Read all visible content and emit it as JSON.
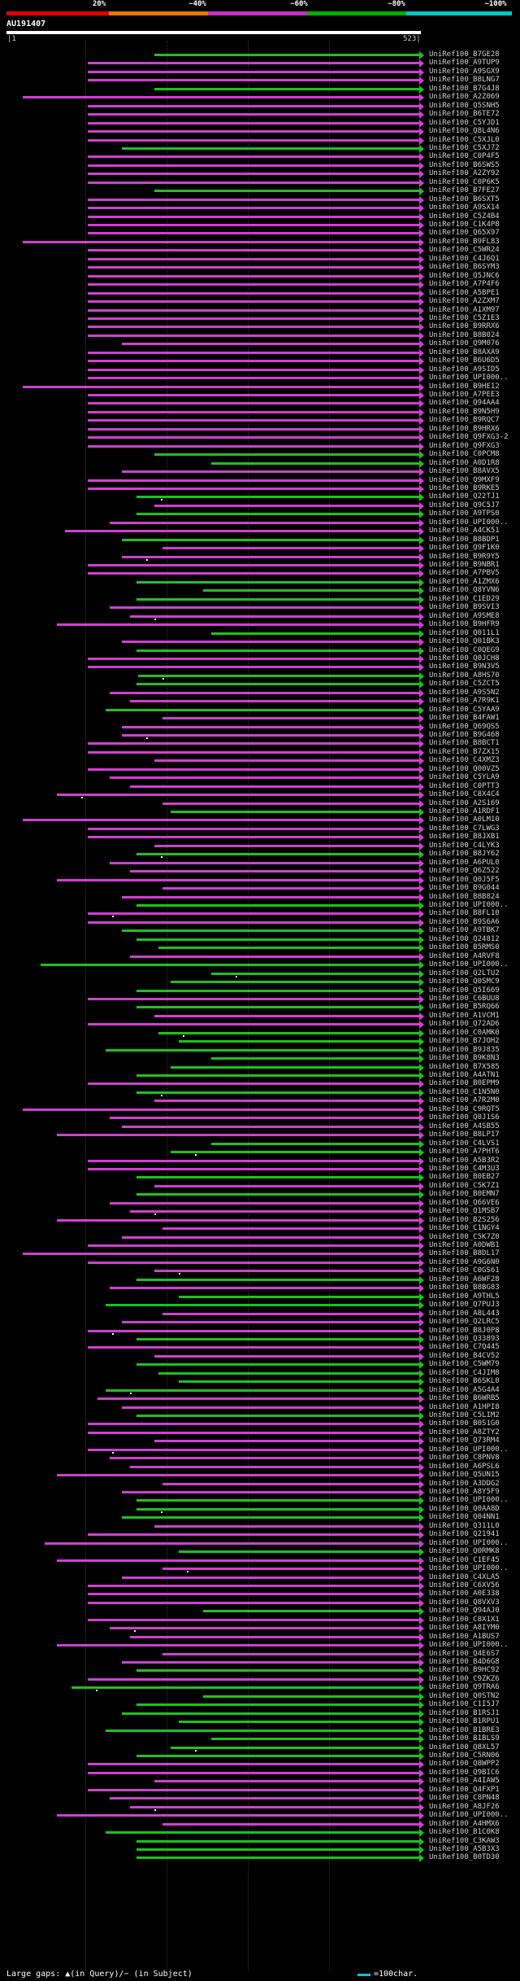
{
  "query": {
    "name": "AU191407",
    "start": "1",
    "end": "523"
  },
  "scale": {
    "labels": [
      "20%",
      "~40%",
      "~60%",
      "~80%",
      "~100%"
    ],
    "colors": [
      "#e00000",
      "#e87800",
      "#c030c0",
      "#00b000",
      "#00c8c8"
    ]
  },
  "colors": {
    "magenta": "#d040d0",
    "green": "#20c020",
    "background": "#000000"
  },
  "legend": {
    "gaps": "Large gaps: ▲(in Query)/− (in Subject)",
    "unit": "=100char."
  },
  "hits": [
    {
      "name": "UniRef100_B7GE28",
      "c": "g"
    },
    {
      "name": "UniRef100_A9TUP9",
      "c": "m"
    },
    {
      "name": "UniRef100_A9SGX9",
      "c": "m"
    },
    {
      "name": "UniRef100_B8LNG7",
      "c": "m"
    },
    {
      "name": "UniRef100_B7G4J8",
      "c": "g"
    },
    {
      "name": "UniRef100_A2Z069",
      "c": "m"
    },
    {
      "name": "UniRef100_Q5SNH5",
      "c": "m"
    },
    {
      "name": "UniRef100_B6TE72",
      "c": "m"
    },
    {
      "name": "UniRef100_C5YJD1",
      "c": "m"
    },
    {
      "name": "UniRef100_Q8L4N6",
      "c": "m"
    },
    {
      "name": "UniRef100_C5XJL0",
      "c": "m"
    },
    {
      "name": "UniRef100_C5XJ72",
      "c": "g"
    },
    {
      "name": "UniRef100_C0P4F5",
      "c": "m"
    },
    {
      "name": "UniRef100_B6SWS5",
      "c": "m"
    },
    {
      "name": "UniRef100_A2ZY92",
      "c": "m"
    },
    {
      "name": "UniRef100_C0P6K5",
      "c": "m"
    },
    {
      "name": "UniRef100_B7FE27",
      "c": "g"
    },
    {
      "name": "UniRef100_B6SXT5",
      "c": "m"
    },
    {
      "name": "UniRef100_A9SX14",
      "c": "m"
    },
    {
      "name": "UniRef100_C5Z4B4",
      "c": "m"
    },
    {
      "name": "UniRef100_C1K4P8",
      "c": "m"
    },
    {
      "name": "UniRef100_Q65X97",
      "c": "m"
    },
    {
      "name": "UniRef100_B9FL83",
      "c": "m"
    },
    {
      "name": "UniRef100_C5WR24",
      "c": "m"
    },
    {
      "name": "UniRef100_C4J6Q1",
      "c": "m"
    },
    {
      "name": "UniRef100_B6SYM3",
      "c": "m"
    },
    {
      "name": "UniRef100_Q5JNC6",
      "c": "m"
    },
    {
      "name": "UniRef100_A7P4F6",
      "c": "m"
    },
    {
      "name": "UniRef100_A5BPE1",
      "c": "m"
    },
    {
      "name": "UniRef100_A2ZXM7",
      "c": "m"
    },
    {
      "name": "UniRef100_A1XM97",
      "c": "m"
    },
    {
      "name": "UniRef100_C5Z1E3",
      "c": "m"
    },
    {
      "name": "UniRef100_B9RRX6",
      "c": "m"
    },
    {
      "name": "UniRef100_B8B024",
      "c": "m"
    },
    {
      "name": "UniRef100_Q9M076",
      "c": "m"
    },
    {
      "name": "UniRef100_B8AXA9",
      "c": "m"
    },
    {
      "name": "UniRef100_B6U6D5",
      "c": "m"
    },
    {
      "name": "UniRef100_A9SID5",
      "c": "m"
    },
    {
      "name": "UniRef100_UPI000..",
      "c": "m"
    },
    {
      "name": "UniRef100_B9HE12",
      "c": "m"
    },
    {
      "name": "UniRef100_A7PEE3",
      "c": "m"
    },
    {
      "name": "UniRef100_Q94AA4",
      "c": "m"
    },
    {
      "name": "UniRef100_B9N5H9",
      "c": "m"
    },
    {
      "name": "UniRef100_B9RQC7",
      "c": "m"
    },
    {
      "name": "UniRef100_B9HRX6",
      "c": "m"
    },
    {
      "name": "UniRef100_Q9FXG3-2",
      "c": "m"
    },
    {
      "name": "UniRef100_Q9FXG3",
      "c": "m"
    },
    {
      "name": "UniRef100_C0PCM8",
      "c": "g"
    },
    {
      "name": "UniRef100_A0D1R8",
      "c": "g"
    },
    {
      "name": "UniRef100_B8AVX5",
      "c": "m"
    },
    {
      "name": "UniRef100_Q9MXF9",
      "c": "m"
    },
    {
      "name": "UniRef100_B9RKE5",
      "c": "m"
    },
    {
      "name": "UniRef100_Q22TJ1",
      "c": "g"
    },
    {
      "name": "UniRef100_Q9C5J7",
      "c": "m"
    },
    {
      "name": "UniRef100_A9TPS0",
      "c": "g"
    },
    {
      "name": "UniRef100_UPI000..",
      "c": "m"
    },
    {
      "name": "UniRef100_A4CK51",
      "c": "m"
    },
    {
      "name": "UniRef100_B8BDP1",
      "c": "g"
    },
    {
      "name": "UniRef100_Q9F1K0",
      "c": "m"
    },
    {
      "name": "UniRef100_B9R9Y5",
      "c": "m"
    },
    {
      "name": "UniRef100_B9NBR1",
      "c": "m"
    },
    {
      "name": "UniRef100_A7PBV5",
      "c": "m"
    },
    {
      "name": "UniRef100_A1ZMX6",
      "c": "g"
    },
    {
      "name": "UniRef100_Q8YVN6",
      "c": "g"
    },
    {
      "name": "UniRef100_C1ED29",
      "c": "g"
    },
    {
      "name": "UniRef100_B9SVI3",
      "c": "m"
    },
    {
      "name": "UniRef100_A9SME8",
      "c": "m"
    },
    {
      "name": "UniRef100_B9HFR9",
      "c": "m"
    },
    {
      "name": "UniRef100_Q011L1",
      "c": "g"
    },
    {
      "name": "UniRef100_Q01BK3",
      "c": "m"
    },
    {
      "name": "UniRef100_C0QEG9",
      "c": "g"
    },
    {
      "name": "UniRef100_Q0JCH8",
      "c": "m"
    },
    {
      "name": "UniRef100_B9N3V5",
      "c": "m"
    },
    {
      "name": "UniRef100_A8HS70",
      "c": "g"
    },
    {
      "name": "UniRef100_C5ZCT5",
      "c": "g"
    },
    {
      "name": "UniRef100_A9S5N2",
      "c": "m"
    },
    {
      "name": "UniRef100_A7R9K1",
      "c": "m"
    },
    {
      "name": "UniRef100_C5YAA9",
      "c": "g"
    },
    {
      "name": "UniRef100_B4FAW1",
      "c": "m"
    },
    {
      "name": "UniRef100_Q69QS5",
      "c": "m"
    },
    {
      "name": "UniRef100_B9G468",
      "c": "m"
    },
    {
      "name": "UniRef100_B8BCT1",
      "c": "m"
    },
    {
      "name": "UniRef100_B7ZX15",
      "c": "m"
    },
    {
      "name": "UniRef100_C4XMZ3",
      "c": "m"
    },
    {
      "name": "UniRef100_Q00VZ5",
      "c": "m"
    },
    {
      "name": "UniRef100_C5YLA9",
      "c": "m"
    },
    {
      "name": "UniRef100_C0PTT3",
      "c": "m"
    },
    {
      "name": "UniRef100_C8X4C4",
      "c": "m"
    },
    {
      "name": "UniRef100_A2S169",
      "c": "m"
    },
    {
      "name": "UniRef100_A1RDF1",
      "c": "g"
    },
    {
      "name": "UniRef100_A0LM10",
      "c": "m"
    },
    {
      "name": "UniRef100_C7LWG3",
      "c": "m"
    },
    {
      "name": "UniRef100_B8JXB1",
      "c": "m"
    },
    {
      "name": "UniRef100_C4LYK3",
      "c": "m"
    },
    {
      "name": "UniRef100_B8JY62",
      "c": "g"
    },
    {
      "name": "UniRef100_A6PUL0",
      "c": "m"
    },
    {
      "name": "UniRef100_Q6Z522",
      "c": "m"
    },
    {
      "name": "UniRef100_Q0J5F5",
      "c": "m"
    },
    {
      "name": "UniRef100_B9G044",
      "c": "m"
    },
    {
      "name": "UniRef100_B8B824",
      "c": "m"
    },
    {
      "name": "UniRef100_UPI000..",
      "c": "g"
    },
    {
      "name": "UniRef100_B8FL10",
      "c": "m"
    },
    {
      "name": "UniRef100_B9S6A6",
      "c": "m"
    },
    {
      "name": "UniRef100_A9TBK7",
      "c": "g"
    },
    {
      "name": "UniRef100_Q24812",
      "c": "g"
    },
    {
      "name": "UniRef100_B5RMS0",
      "c": "g"
    },
    {
      "name": "UniRef100_A4RVF8",
      "c": "m"
    },
    {
      "name": "UniRef100_UPI000..",
      "c": "g"
    },
    {
      "name": "UniRef100_Q2LTU2",
      "c": "g"
    },
    {
      "name": "UniRef100_Q0SMC9",
      "c": "g"
    },
    {
      "name": "UniRef100_Q5I669",
      "c": "g"
    },
    {
      "name": "UniRef100_C6BUU8",
      "c": "m"
    },
    {
      "name": "UniRef100_B5RQ66",
      "c": "g"
    },
    {
      "name": "UniRef100_A1VCM1",
      "c": "m"
    },
    {
      "name": "UniRef100_Q72AD6",
      "c": "m"
    },
    {
      "name": "UniRef100_C0AMK0",
      "c": "g"
    },
    {
      "name": "UniRef100_B7JOH2",
      "c": "g"
    },
    {
      "name": "UniRef100_B9J835",
      "c": "g"
    },
    {
      "name": "UniRef100_B9K8N3",
      "c": "g"
    },
    {
      "name": "UniRef100_B7X585",
      "c": "g"
    },
    {
      "name": "UniRef100_A4ATN1",
      "c": "g"
    },
    {
      "name": "UniRef100_B0EPM9",
      "c": "m"
    },
    {
      "name": "UniRef100_C1N5N0",
      "c": "g"
    },
    {
      "name": "UniRef100_A7R2M0",
      "c": "m"
    },
    {
      "name": "UniRef100_C9RQT5",
      "c": "m"
    },
    {
      "name": "UniRef100_Q0J1S6",
      "c": "m"
    },
    {
      "name": "UniRef100_A4SB55",
      "c": "m"
    },
    {
      "name": "UniRef100_B8LP17",
      "c": "m"
    },
    {
      "name": "UniRef100_C4LVS1",
      "c": "g"
    },
    {
      "name": "UniRef100_A7PHT6",
      "c": "g"
    },
    {
      "name": "UniRef100_A5B3R2",
      "c": "m"
    },
    {
      "name": "UniRef100_C4M3U3",
      "c": "m"
    },
    {
      "name": "UniRef100_B0EB27",
      "c": "g"
    },
    {
      "name": "UniRef100_C5K7Z1",
      "c": "m"
    },
    {
      "name": "UniRef100_B0EMN7",
      "c": "g"
    },
    {
      "name": "UniRef100_Q66VE6",
      "c": "m"
    },
    {
      "name": "UniRef100_Q1MSB7",
      "c": "m"
    },
    {
      "name": "UniRef100_B2S256",
      "c": "m"
    },
    {
      "name": "UniRef100_C1NGY4",
      "c": "m"
    },
    {
      "name": "UniRef100_C5K7Z0",
      "c": "m"
    },
    {
      "name": "UniRef100_A0DWB1",
      "c": "m"
    },
    {
      "name": "UniRef100_B8DL17",
      "c": "m"
    },
    {
      "name": "UniRef100_A9G6N0",
      "c": "m"
    },
    {
      "name": "UniRef100_C0GS61",
      "c": "m"
    },
    {
      "name": "UniRef100_A6WF28",
      "c": "g"
    },
    {
      "name": "UniRef100_B8BG83",
      "c": "m"
    },
    {
      "name": "UniRef100_A9THL5",
      "c": "g"
    },
    {
      "name": "UniRef100_Q7PUJ3",
      "c": "g"
    },
    {
      "name": "UniRef100_A8L443",
      "c": "m"
    },
    {
      "name": "UniRef100_Q2LRC5",
      "c": "m"
    },
    {
      "name": "UniRef100_B8J0P8",
      "c": "m"
    },
    {
      "name": "UniRef100_Q33893",
      "c": "g"
    },
    {
      "name": "UniRef100_C7Q445",
      "c": "m"
    },
    {
      "name": "UniRef100_B4CV52",
      "c": "m"
    },
    {
      "name": "UniRef100_C5WM79",
      "c": "g"
    },
    {
      "name": "UniRef100_C4JIM8",
      "c": "g"
    },
    {
      "name": "UniRef100_B6SKL0",
      "c": "g"
    },
    {
      "name": "UniRef100_A5G4A4",
      "c": "g"
    },
    {
      "name": "UniRef100_B6WRB5",
      "c": "m"
    },
    {
      "name": "UniRef100_A1HPI8",
      "c": "m"
    },
    {
      "name": "UniRef100_C5LIM2",
      "c": "g"
    },
    {
      "name": "UniRef100_B0S1G0",
      "c": "m"
    },
    {
      "name": "UniRef100_A8ZTY2",
      "c": "m"
    },
    {
      "name": "UniRef100_Q73RM4",
      "c": "m"
    },
    {
      "name": "UniRef100_UPI000..",
      "c": "m"
    },
    {
      "name": "UniRef100_C8PNV8",
      "c": "m"
    },
    {
      "name": "UniRef100_A6PSL6",
      "c": "m"
    },
    {
      "name": "UniRef100_Q5UN15",
      "c": "m"
    },
    {
      "name": "UniRef100_A3DDG2",
      "c": "m"
    },
    {
      "name": "UniRef100_A8Y5F9",
      "c": "m"
    },
    {
      "name": "UniRef100_UPI000..",
      "c": "g"
    },
    {
      "name": "UniRef100_Q0AA8D",
      "c": "g"
    },
    {
      "name": "UniRef100_Q04NN1",
      "c": "g"
    },
    {
      "name": "UniRef100_Q311L0",
      "c": "m"
    },
    {
      "name": "UniRef100_Q21941",
      "c": "m"
    },
    {
      "name": "UniRef100_UPI000..",
      "c": "m"
    },
    {
      "name": "UniRef100_Q0RMK8",
      "c": "g"
    },
    {
      "name": "UniRef100_C1EF45",
      "c": "m"
    },
    {
      "name": "UniRef100_UPI000..",
      "c": "m"
    },
    {
      "name": "UniRef100_C4XLA5",
      "c": "m"
    },
    {
      "name": "UniRef100_C6XV56",
      "c": "m"
    },
    {
      "name": "UniRef100_A0E338",
      "c": "m"
    },
    {
      "name": "UniRef100_Q8VXV3",
      "c": "m"
    },
    {
      "name": "UniRef100_Q94AJ0",
      "c": "g"
    },
    {
      "name": "UniRef100_C8X1X1",
      "c": "m"
    },
    {
      "name": "UniRef100_A8IYM0",
      "c": "m"
    },
    {
      "name": "UniRef100_A1BUS7",
      "c": "m"
    },
    {
      "name": "UniRef100_UPI000..",
      "c": "m"
    },
    {
      "name": "UniRef100_Q4E6S7",
      "c": "m"
    },
    {
      "name": "UniRef100_B4D6G8",
      "c": "m"
    },
    {
      "name": "UniRef100_B9HC92",
      "c": "g"
    },
    {
      "name": "UniRef100_C9ZKZ6",
      "c": "m"
    },
    {
      "name": "UniRef100_Q9TRA6",
      "c": "g"
    },
    {
      "name": "UniRef100_Q0STN2",
      "c": "g"
    },
    {
      "name": "UniRef100_C1I5J7",
      "c": "g"
    },
    {
      "name": "UniRef100_B1RSJ1",
      "c": "g"
    },
    {
      "name": "UniRef100_B1RPU1",
      "c": "g"
    },
    {
      "name": "UniRef100_B1BRE3",
      "c": "g"
    },
    {
      "name": "UniRef100_B1BLS9",
      "c": "g"
    },
    {
      "name": "UniRef100_Q8XL57",
      "c": "g"
    },
    {
      "name": "UniRef100_C5RN06",
      "c": "g"
    },
    {
      "name": "UniRef100_Q8WPP2",
      "c": "m"
    },
    {
      "name": "UniRef100_Q9BIC6",
      "c": "m"
    },
    {
      "name": "UniRef100_A4IAW5",
      "c": "m"
    },
    {
      "name": "UniRef100_Q4FXP1",
      "c": "m"
    },
    {
      "name": "UniRef100_C8PN48",
      "c": "m"
    },
    {
      "name": "UniRef100_A8JF26",
      "c": "m"
    },
    {
      "name": "UniRef100_UPI000..",
      "c": "m"
    },
    {
      "name": "UniRef100_A4HMX6",
      "c": "m"
    },
    {
      "name": "UniRef100_B1C0K8",
      "c": "g"
    },
    {
      "name": "UniRef100_C3KAW3",
      "c": "g"
    },
    {
      "name": "UniRef100_A5B3X3",
      "c": "g"
    },
    {
      "name": "UniRef100_B0TD30",
      "c": "g"
    }
  ]
}
